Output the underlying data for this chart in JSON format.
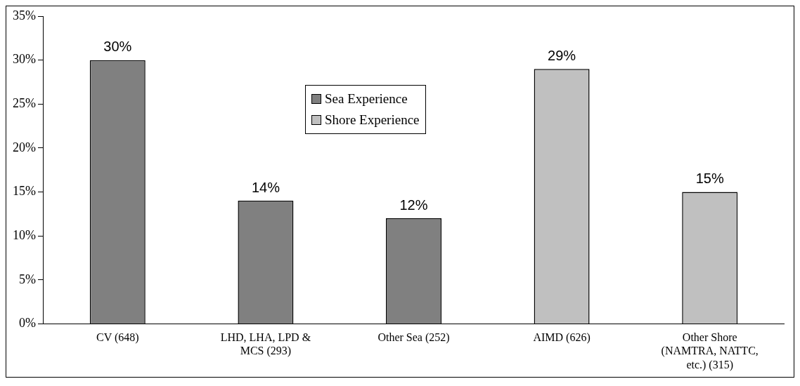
{
  "chart_data": {
    "type": "bar",
    "categories": [
      "CV (648)",
      "LHD, LHA, LPD & MCS (293)",
      "Other Sea (252)",
      "AIMD (626)",
      "Other Shore (NAMTRA, NATTC, etc.) (315)"
    ],
    "series": [
      {
        "name": "Sea Experience",
        "color": "#808080",
        "values": [
          30,
          14,
          12,
          null,
          null
        ],
        "value_labels": [
          "30%",
          "14%",
          "12%",
          null,
          null
        ]
      },
      {
        "name": "Shore Experience",
        "color": "#c0c0c0",
        "values": [
          null,
          null,
          null,
          29,
          15
        ],
        "value_labels": [
          null,
          null,
          null,
          "29%",
          "15%"
        ]
      }
    ],
    "ylim": [
      0,
      35
    ],
    "yticks": [
      {
        "value": 0,
        "label": "0%"
      },
      {
        "value": 5,
        "label": "5%"
      },
      {
        "value": 10,
        "label": "10%"
      },
      {
        "value": 15,
        "label": "15%"
      },
      {
        "value": 20,
        "label": "20%"
      },
      {
        "value": 25,
        "label": "25%"
      },
      {
        "value": 30,
        "label": "30%"
      },
      {
        "value": 35,
        "label": "35%"
      }
    ],
    "grid": false,
    "legend": "top"
  }
}
